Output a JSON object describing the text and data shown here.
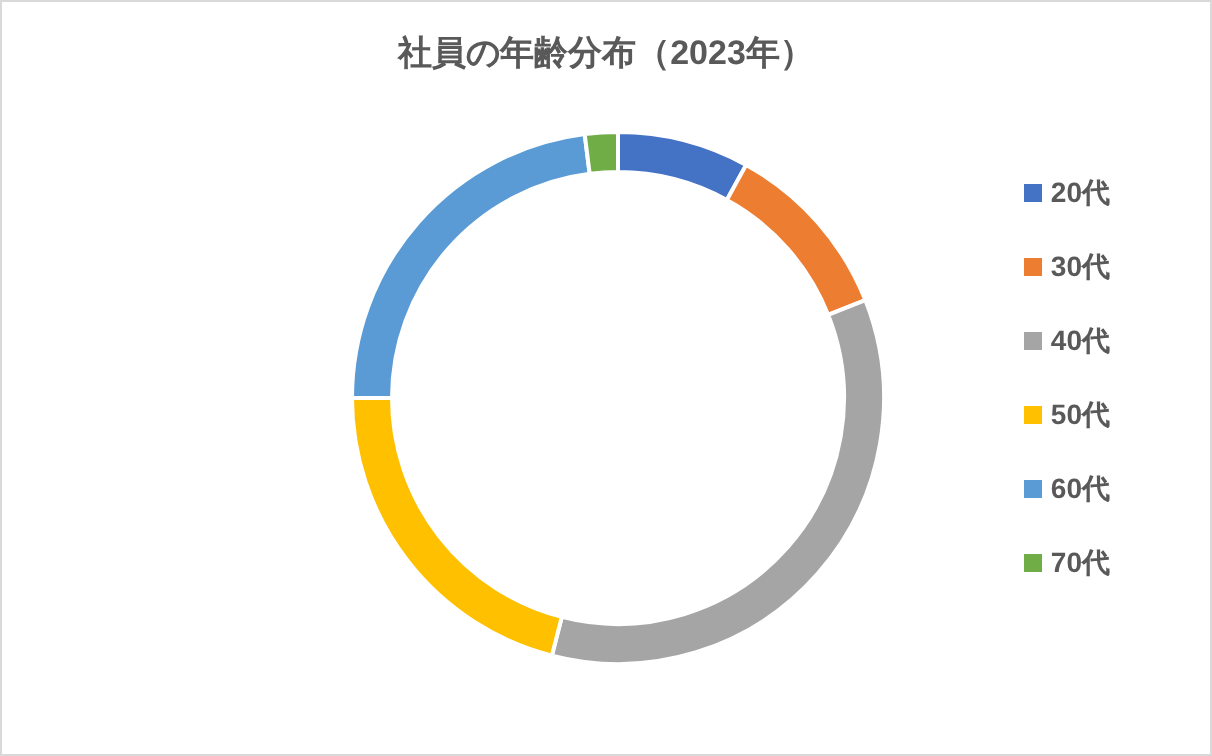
{
  "chart_data": {
    "type": "donut",
    "title": "社員の年齢分布（2023年）",
    "categories": [
      "20代",
      "30代",
      "40代",
      "50代",
      "60代",
      "70代"
    ],
    "values": [
      8,
      11,
      35,
      21,
      23,
      2
    ],
    "colors": [
      "#4472c4",
      "#ed7d31",
      "#a5a5a5",
      "#ffc000",
      "#5b9bd5",
      "#70ad47"
    ],
    "legend": "right"
  }
}
